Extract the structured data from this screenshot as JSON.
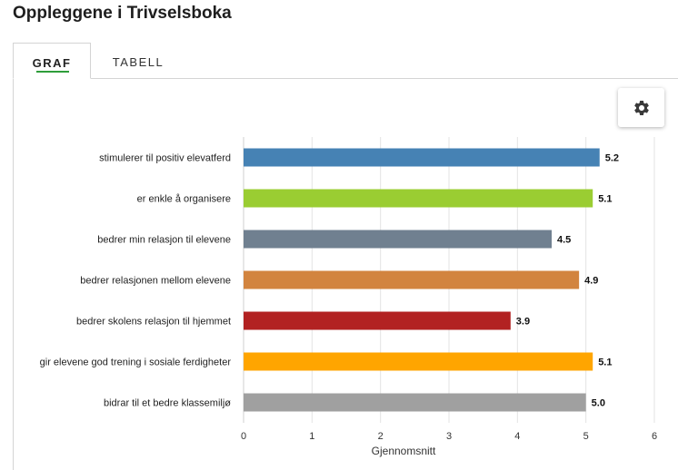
{
  "page": {
    "title": "Oppleggene i Trivselsboka"
  },
  "tabs": [
    {
      "label": "GRAF",
      "active": true
    },
    {
      "label": "TABELL",
      "active": false
    }
  ],
  "settings": {
    "icon": "gear-icon"
  },
  "chart_data": {
    "type": "bar",
    "orientation": "horizontal",
    "categories": [
      "stimulerer til positiv elevatferd",
      "er enkle å organisere",
      "bedrer min relasjon til elevene",
      "bedrer relasjonen mellom elevene",
      "bedrer skolens relasjon til hjemmet",
      "gir elevene god trening i sosiale ferdigheter",
      "bidrar til et bedre klassemiljø"
    ],
    "values": [
      5.2,
      5.1,
      4.5,
      4.9,
      3.9,
      5.1,
      5.0
    ],
    "value_labels": [
      "5.2",
      "5.1",
      "4.5",
      "4.9",
      "3.9",
      "5.1",
      "5.0"
    ],
    "colors": [
      "#4682b4",
      "#9acd32",
      "#708090",
      "#d2843f",
      "#b22222",
      "#ffa500",
      "#a0a0a0"
    ],
    "xlabel": "Gjennomsnitt",
    "ylabel": "",
    "xlim": [
      0,
      6
    ],
    "xticks": [
      "0",
      "1",
      "2",
      "3",
      "4",
      "5",
      "6"
    ],
    "grid": "vertical",
    "legend": "none"
  }
}
